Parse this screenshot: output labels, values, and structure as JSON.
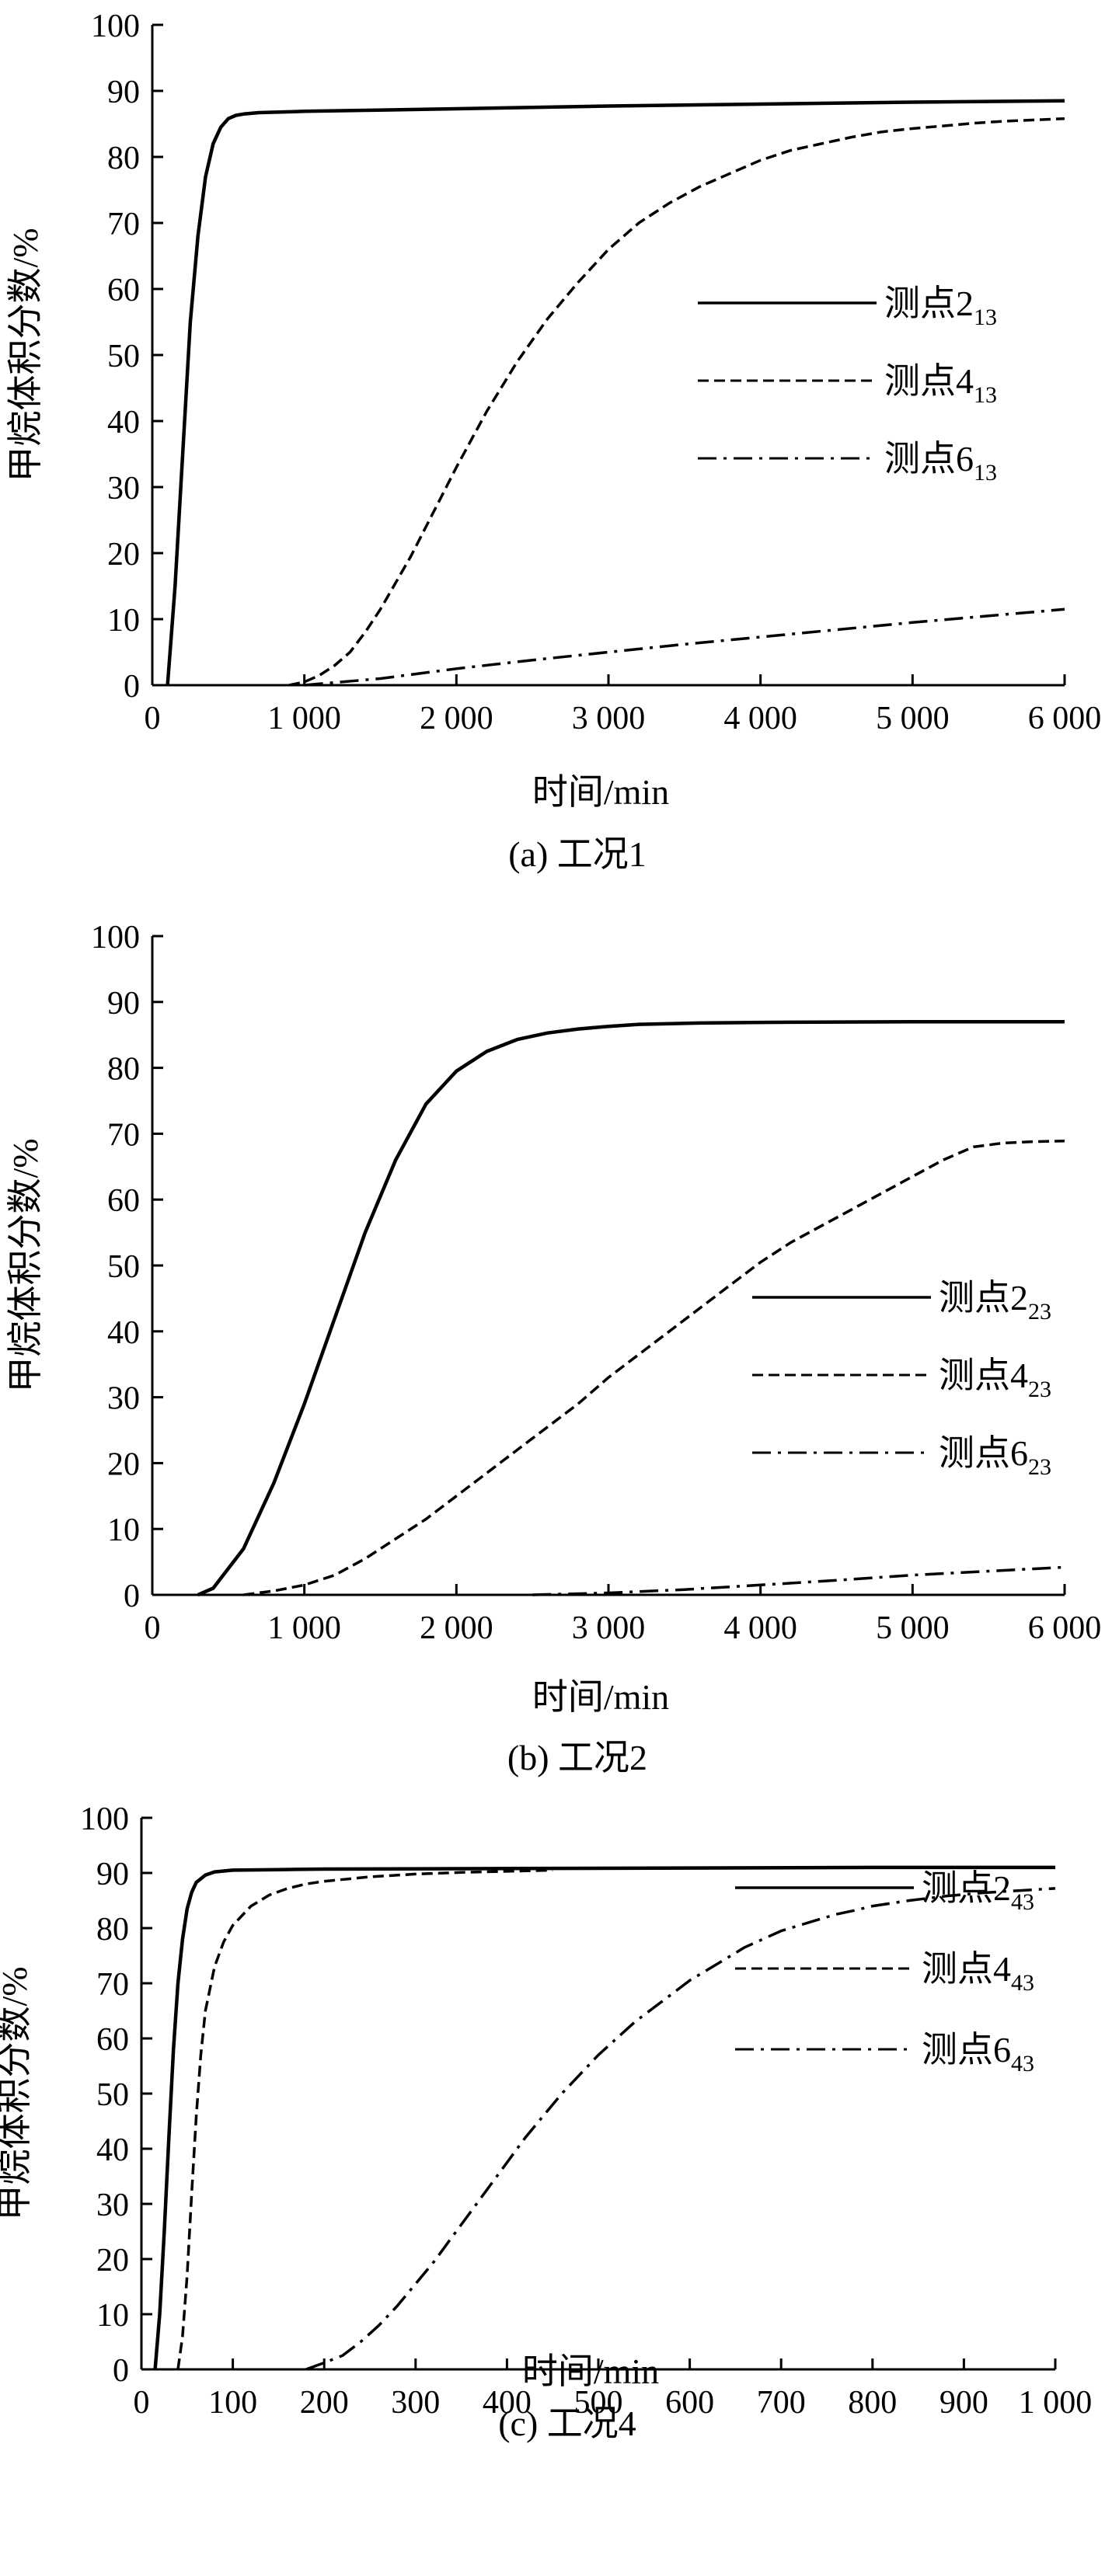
{
  "chart_data": [
    {
      "type": "line",
      "caption": "(a) 工况1",
      "xlabel": "时间/min",
      "ylabel": "甲烷体积分数/%",
      "xlim": [
        0,
        6000
      ],
      "ylim": [
        0,
        100
      ],
      "xticks": [
        "0",
        "1 000",
        "2 000",
        "3 000",
        "4 000",
        "5 000",
        "6 000"
      ],
      "yticks": [
        "0",
        "10",
        "20",
        "30",
        "40",
        "50",
        "60",
        "70",
        "80",
        "90",
        "100"
      ],
      "legend_position": "right-middle",
      "series": [
        {
          "name": "测点2",
          "name_sub": "13",
          "style": "solid",
          "x": [
            100,
            150,
            200,
            250,
            300,
            350,
            400,
            450,
            500,
            550,
            600,
            650,
            700,
            1000,
            2000,
            3000,
            4000,
            5000,
            6000
          ],
          "y": [
            0,
            15,
            35,
            55,
            68,
            77,
            82,
            84.5,
            85.8,
            86.3,
            86.5,
            86.6,
            86.7,
            86.9,
            87.3,
            87.7,
            88.0,
            88.3,
            88.5
          ]
        },
        {
          "name": "测点4",
          "name_sub": "13",
          "style": "dashed",
          "x": [
            900,
            1000,
            1100,
            1200,
            1300,
            1400,
            1500,
            1600,
            1700,
            1800,
            1900,
            2000,
            2200,
            2400,
            2600,
            2800,
            3000,
            3200,
            3400,
            3600,
            3800,
            4000,
            4200,
            4400,
            4600,
            4800,
            5000,
            5200,
            5400,
            5600,
            5800,
            6000
          ],
          "y": [
            0,
            0.5,
            1.5,
            3,
            5,
            8,
            11.5,
            15.5,
            19.5,
            24,
            28.5,
            33,
            41.5,
            49,
            55.5,
            61,
            66,
            70,
            73,
            75.5,
            77.5,
            79.5,
            81,
            82,
            83,
            83.8,
            84.3,
            84.7,
            85.1,
            85.4,
            85.6,
            85.8
          ]
        },
        {
          "name": "测点6",
          "name_sub": "13",
          "style": "dashdot",
          "x": [
            1000,
            1500,
            2000,
            2500,
            3000,
            3500,
            4000,
            4500,
            5000,
            5500,
            6000
          ],
          "y": [
            0,
            1,
            2.5,
            3.8,
            5,
            6.2,
            7.3,
            8.4,
            9.5,
            10.5,
            11.5
          ]
        }
      ]
    },
    {
      "type": "line",
      "caption": "(b) 工况2",
      "xlabel": "时间/min",
      "ylabel": "甲烷体积分数/%",
      "xlim": [
        0,
        6000
      ],
      "ylim": [
        0,
        100
      ],
      "xticks": [
        "0",
        "1 000",
        "2 000",
        "3 000",
        "4 000",
        "5 000",
        "6 000"
      ],
      "yticks": [
        "0",
        "10",
        "20",
        "30",
        "40",
        "50",
        "60",
        "70",
        "80",
        "90",
        "100"
      ],
      "legend_position": "right-middle",
      "series": [
        {
          "name": "测点2",
          "name_sub": "23",
          "style": "solid",
          "x": [
            300,
            400,
            600,
            800,
            1000,
            1200,
            1400,
            1600,
            1800,
            2000,
            2200,
            2400,
            2600,
            2800,
            3000,
            3200,
            3600,
            4000,
            5000,
            6000
          ],
          "y": [
            0,
            1,
            7,
            17,
            29,
            42,
            55,
            66,
            74.5,
            79.5,
            82.5,
            84.3,
            85.3,
            85.9,
            86.3,
            86.6,
            86.8,
            86.9,
            87.0,
            87.0
          ]
        },
        {
          "name": "测点4",
          "name_sub": "23",
          "style": "dashed",
          "x": [
            600,
            800,
            1000,
            1200,
            1400,
            1600,
            1800,
            2000,
            2200,
            2400,
            2600,
            2800,
            3000,
            3200,
            3400,
            3600,
            3800,
            4000,
            4200,
            4400,
            4600,
            4800,
            5000,
            5200,
            5400,
            5600,
            5800,
            6000
          ],
          "y": [
            0,
            0.6,
            1.5,
            3,
            5.5,
            8.5,
            11.5,
            15,
            18.5,
            22,
            25.5,
            29,
            33,
            36.5,
            40,
            43.5,
            47,
            50.5,
            53.5,
            56,
            58.5,
            61,
            63.5,
            66,
            68,
            68.6,
            68.8,
            68.9
          ]
        },
        {
          "name": "测点6",
          "name_sub": "23",
          "style": "dashdot",
          "x": [
            2500,
            3000,
            3500,
            4000,
            4500,
            5000,
            5500,
            6000
          ],
          "y": [
            0,
            0.3,
            0.8,
            1.5,
            2.2,
            3.0,
            3.6,
            4.2
          ]
        }
      ]
    },
    {
      "type": "line",
      "caption": "(c) 工况4",
      "xlabel": "时间/min",
      "ylabel": "甲烷体积分数/%",
      "xlim": [
        0,
        1000
      ],
      "ylim": [
        0,
        100
      ],
      "xticks": [
        "0",
        "100",
        "200",
        "300",
        "400",
        "500",
        "600",
        "700",
        "800",
        "900",
        "1 000"
      ],
      "yticks": [
        "0",
        "10",
        "20",
        "30",
        "40",
        "50",
        "60",
        "70",
        "80",
        "90",
        "100"
      ],
      "legend_position": "right-middle",
      "series": [
        {
          "name": "测点2",
          "name_sub": "43",
          "style": "solid",
          "x": [
            15,
            20,
            25,
            30,
            35,
            40,
            45,
            50,
            55,
            60,
            70,
            80,
            100,
            150,
            200,
            400,
            600,
            800,
            1000
          ],
          "y": [
            0,
            10,
            25,
            42,
            58,
            70,
            78,
            83.5,
            86.5,
            88.3,
            89.6,
            90.2,
            90.5,
            90.6,
            90.7,
            90.8,
            90.9,
            91.0,
            91.0
          ]
        },
        {
          "name": "测点4",
          "name_sub": "43",
          "style": "dashed",
          "x": [
            40,
            45,
            50,
            55,
            60,
            65,
            70,
            80,
            90,
            100,
            120,
            140,
            160,
            180,
            200,
            250,
            300,
            350,
            400,
            450
          ],
          "y": [
            0,
            6,
            17,
            32,
            46,
            57,
            65,
            73,
            77.5,
            80.5,
            84,
            86,
            87.2,
            88,
            88.5,
            89.3,
            89.8,
            90.1,
            90.3,
            90.5
          ]
        },
        {
          "name": "测点6",
          "name_sub": "43",
          "style": "dashdot",
          "x": [
            180,
            200,
            220,
            240,
            260,
            280,
            300,
            320,
            340,
            360,
            380,
            400,
            420,
            440,
            460,
            480,
            500,
            520,
            540,
            560,
            580,
            600,
            620,
            640,
            660,
            680,
            700,
            720,
            740,
            760,
            780,
            800,
            820,
            840,
            860,
            880,
            900,
            920,
            940,
            960,
            980,
            1000
          ],
          "y": [
            0,
            1.2,
            2.5,
            5,
            8,
            11.5,
            15.5,
            19.5,
            24,
            28.5,
            33,
            37.5,
            42,
            46,
            50,
            53.5,
            57,
            60,
            63,
            65.5,
            68,
            70.5,
            72.5,
            74.5,
            76.5,
            78,
            79.5,
            80.5,
            81.5,
            82.5,
            83.2,
            84,
            84.5,
            85,
            85.4,
            85.8,
            86.1,
            86.4,
            86.6,
            86.8,
            87.0,
            87.2
          ]
        }
      ]
    }
  ]
}
